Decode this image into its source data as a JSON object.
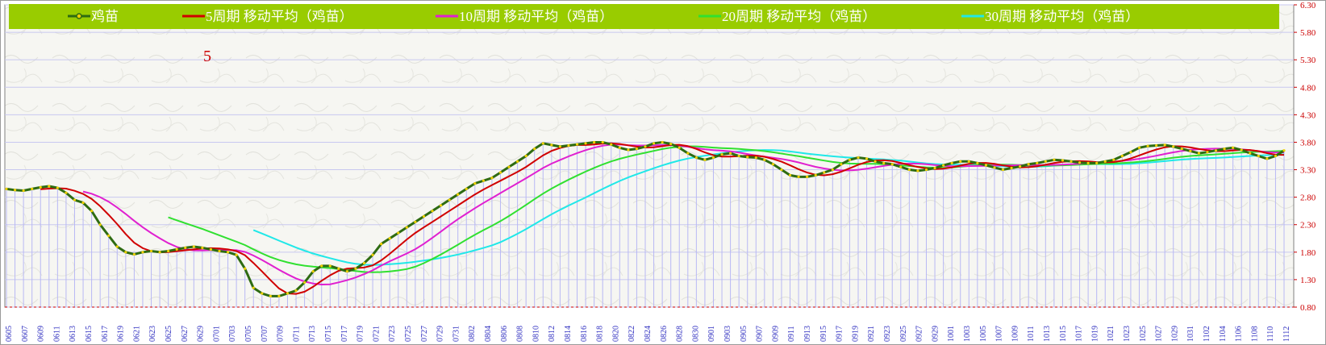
{
  "chart_data": {
    "type": "line",
    "title": "",
    "annotation": "5",
    "xlabel": "",
    "ylabel": "",
    "ylim": [
      0.8,
      6.3
    ],
    "y_ticks": [
      "0.80",
      "1.30",
      "1.80",
      "2.30",
      "2.80",
      "3.30",
      "3.80",
      "4.30",
      "4.80",
      "5.30",
      "5.80",
      "6.30"
    ],
    "x_ticks": [
      "0605",
      "0607",
      "0609",
      "0611",
      "0613",
      "0615",
      "0617",
      "0619",
      "0621",
      "0623",
      "0625",
      "0627",
      "0629",
      "0701",
      "0703",
      "0705",
      "0707",
      "0709",
      "0711",
      "0713",
      "0715",
      "0717",
      "0719",
      "0721",
      "0723",
      "0725",
      "0727",
      "0729",
      "0731",
      "0802",
      "0804",
      "0806",
      "0808",
      "0810",
      "0812",
      "0814",
      "0816",
      "0818",
      "0820",
      "0822",
      "0824",
      "0826",
      "0828",
      "0830",
      "0901",
      "0903",
      "0905",
      "0907",
      "0909",
      "0911",
      "0913",
      "0915",
      "0917",
      "0919",
      "0921",
      "0923",
      "0925",
      "0927",
      "0929",
      "1001",
      "1003",
      "1005",
      "1007",
      "1009",
      "1011",
      "1013",
      "1015",
      "1017",
      "1019",
      "1021",
      "1023",
      "1025",
      "1027",
      "1029",
      "1031",
      "1102",
      "1104",
      "1106",
      "1108",
      "1110",
      "1112"
    ],
    "price_x_start": "0605",
    "price_x_end": "1112",
    "price": [
      2.95,
      2.93,
      2.92,
      2.95,
      2.98,
      3.0,
      2.97,
      2.88,
      2.75,
      2.7,
      2.55,
      2.3,
      2.1,
      1.9,
      1.8,
      1.76,
      1.8,
      1.82,
      1.8,
      1.82,
      1.85,
      1.88,
      1.9,
      1.88,
      1.85,
      1.82,
      1.8,
      1.75,
      1.5,
      1.15,
      1.05,
      1.0,
      1.0,
      1.05,
      1.1,
      1.25,
      1.45,
      1.55,
      1.55,
      1.5,
      1.45,
      1.5,
      1.6,
      1.75,
      1.95,
      2.05,
      2.15,
      2.25,
      2.35,
      2.45,
      2.55,
      2.65,
      2.75,
      2.85,
      2.95,
      3.05,
      3.1,
      3.15,
      3.25,
      3.35,
      3.45,
      3.55,
      3.68,
      3.78,
      3.75,
      3.72,
      3.74,
      3.76,
      3.78,
      3.8,
      3.8,
      3.76,
      3.7,
      3.66,
      3.68,
      3.72,
      3.78,
      3.8,
      3.77,
      3.7,
      3.6,
      3.52,
      3.48,
      3.52,
      3.58,
      3.6,
      3.55,
      3.53,
      3.52,
      3.48,
      3.4,
      3.3,
      3.2,
      3.17,
      3.17,
      3.2,
      3.25,
      3.3,
      3.4,
      3.48,
      3.52,
      3.5,
      3.45,
      3.42,
      3.4,
      3.35,
      3.3,
      3.28,
      3.3,
      3.33,
      3.38,
      3.42,
      3.45,
      3.45,
      3.42,
      3.38,
      3.34,
      3.3,
      3.33,
      3.36,
      3.4,
      3.42,
      3.45,
      3.48,
      3.47,
      3.45,
      3.43,
      3.42,
      3.42,
      3.45,
      3.48,
      3.55,
      3.62,
      3.7,
      3.73,
      3.74,
      3.75,
      3.72,
      3.68,
      3.64,
      3.6,
      3.62,
      3.65,
      3.68,
      3.7,
      3.66,
      3.6,
      3.55,
      3.5,
      3.55,
      3.65
    ],
    "series": [
      {
        "name": "鸡苗",
        "color": "#2e6b12",
        "ma": 1
      },
      {
        "name": "5周期 移动平均（鸡苗）",
        "color": "#d00000",
        "ma": 5
      },
      {
        "name": "10周期 移动平均（鸡苗）",
        "color": "#e020d0",
        "ma": 10
      },
      {
        "name": "20周期 移动平均（鸡苗）",
        "color": "#30e030",
        "ma": 20
      },
      {
        "name": "30周期 移动平均（鸡苗）",
        "color": "#20e8e8",
        "ma": 30
      }
    ],
    "legend_position": "top",
    "legend_bg": "#99cc00",
    "grid": true
  }
}
